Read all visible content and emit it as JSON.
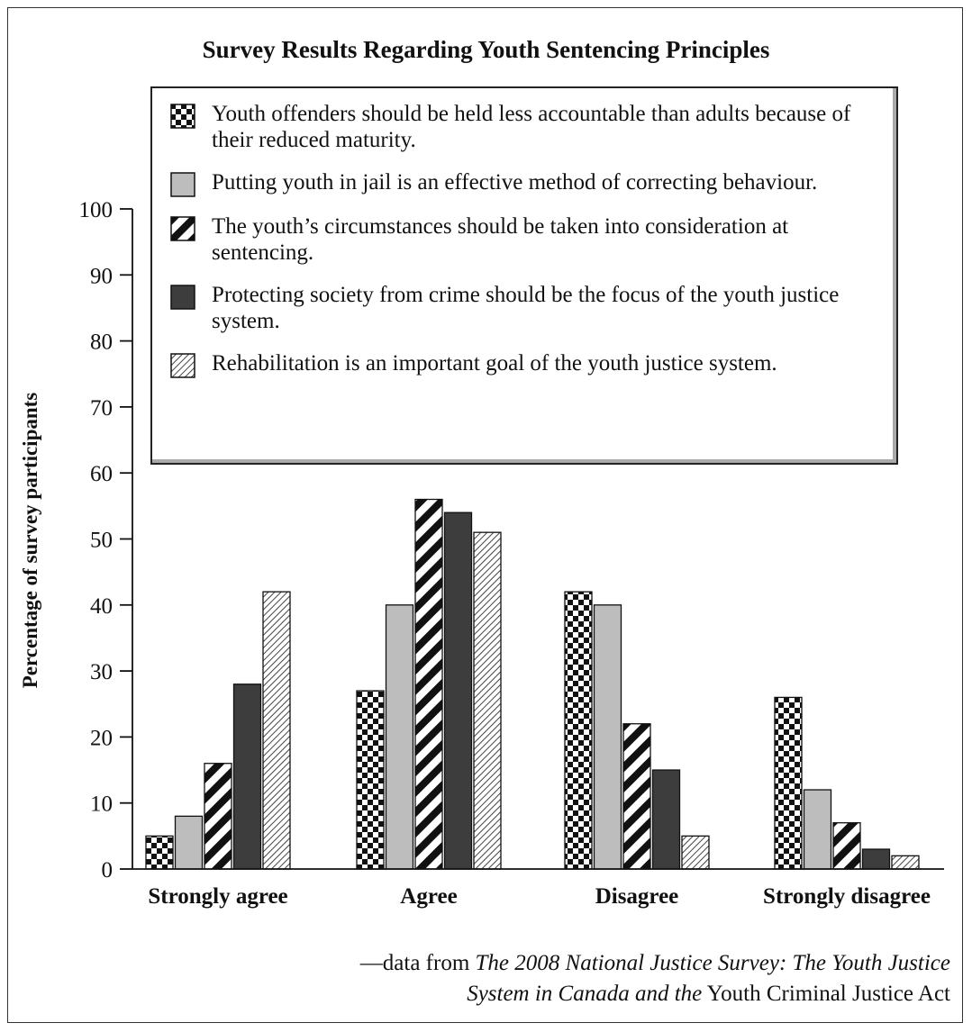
{
  "chart_data": {
    "type": "bar",
    "title": "Survey Results Regarding Youth Sentencing Principles",
    "ylabel": "Percentage of survey participants",
    "xlabel": "",
    "ylim": [
      0,
      100
    ],
    "yticks": [
      0,
      10,
      20,
      30,
      40,
      50,
      60,
      70,
      80,
      90,
      100
    ],
    "categories": [
      "Strongly agree",
      "Agree",
      "Disagree",
      "Strongly disagree"
    ],
    "series": [
      {
        "name": "Youth offenders should be held less accountable than adults because of their reduced maturity.",
        "pattern": "checker",
        "values": [
          5,
          27,
          42,
          26
        ]
      },
      {
        "name": "Putting youth in jail is an effective method of correcting behaviour.",
        "pattern": "light-gray",
        "values": [
          8,
          40,
          40,
          12
        ]
      },
      {
        "name": "The youth’s circumstances should be taken into consideration at sentencing.",
        "pattern": "bold-diagonal",
        "values": [
          16,
          56,
          22,
          7
        ]
      },
      {
        "name": "Protecting society from crime should be the focus of the youth justice system.",
        "pattern": "dark-gray",
        "values": [
          28,
          54,
          15,
          3
        ]
      },
      {
        "name": "Rehabilitation is an important goal of the youth justice system.",
        "pattern": "fine-hatch",
        "values": [
          42,
          51,
          5,
          2
        ]
      }
    ],
    "legend_position": "top-center",
    "grid": false
  },
  "colors": {
    "light_gray": "#bdbdbd",
    "dark_gray": "#3d3d3d",
    "ink": "#111111"
  },
  "source": {
    "prefix": "—data from ",
    "italic1": "The 2008 National Justice Survey: The Youth Justice",
    "italic2": "System in Canada and the",
    "roman2": " Youth Criminal Justice Act"
  }
}
